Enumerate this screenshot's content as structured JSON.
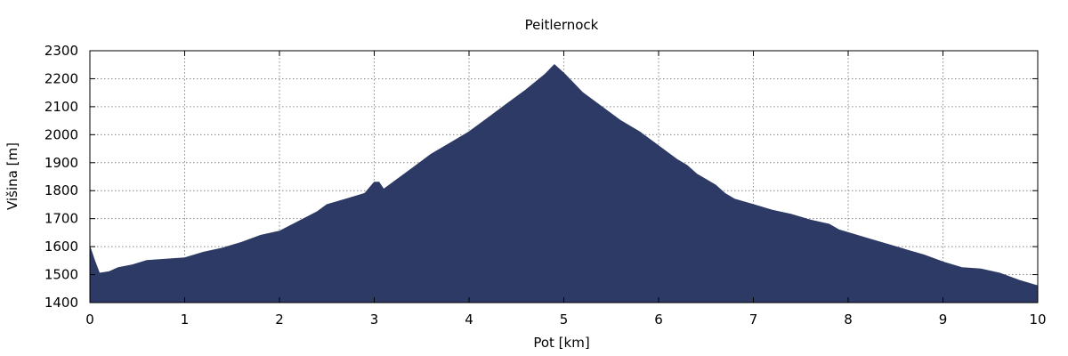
{
  "chart_data": {
    "type": "area",
    "title": "Peitlernock",
    "xlabel": "Pot [km]",
    "ylabel": "Višina [m]",
    "xlim": [
      0,
      10
    ],
    "ylim": [
      1400,
      2300
    ],
    "xticks": [
      "0",
      "1",
      "2",
      "3",
      "4",
      "5",
      "6",
      "7",
      "8",
      "9",
      "10"
    ],
    "yticks": [
      "1400",
      "1500",
      "1600",
      "1700",
      "1800",
      "1900",
      "2000",
      "2100",
      "2200",
      "2300"
    ],
    "grid": true,
    "fill_color": "#2c3a65",
    "series": [
      {
        "x": [
          0,
          0.05,
          0.1,
          0.2,
          0.3,
          0.45,
          0.6,
          0.8,
          1.0,
          1.2,
          1.4,
          1.6,
          1.8,
          2.0,
          2.2,
          2.4,
          2.5,
          2.7,
          2.9,
          3.0,
          3.05,
          3.1,
          3.2,
          3.4,
          3.6,
          3.8,
          4.0,
          4.2,
          4.4,
          4.6,
          4.8,
          4.9,
          5.0,
          5.2,
          5.4,
          5.6,
          5.8,
          6.0,
          6.2,
          6.3,
          6.4,
          6.6,
          6.7,
          6.8,
          7.0,
          7.2,
          7.4,
          7.6,
          7.8,
          7.9,
          8.0,
          8.2,
          8.4,
          8.6,
          8.8,
          9.0,
          9.2,
          9.4,
          9.6,
          9.8,
          9.95,
          10.0
        ],
        "y": [
          1600,
          1550,
          1505,
          1510,
          1525,
          1535,
          1550,
          1555,
          1560,
          1580,
          1595,
          1615,
          1640,
          1655,
          1690,
          1725,
          1750,
          1770,
          1790,
          1830,
          1830,
          1805,
          1830,
          1880,
          1930,
          1970,
          2010,
          2060,
          2110,
          2160,
          2215,
          2250,
          2220,
          2150,
          2100,
          2050,
          2010,
          1960,
          1910,
          1890,
          1860,
          1820,
          1790,
          1770,
          1750,
          1730,
          1715,
          1695,
          1680,
          1660,
          1650,
          1630,
          1610,
          1590,
          1570,
          1545,
          1525,
          1520,
          1505,
          1480,
          1465,
          1460
        ]
      }
    ]
  }
}
